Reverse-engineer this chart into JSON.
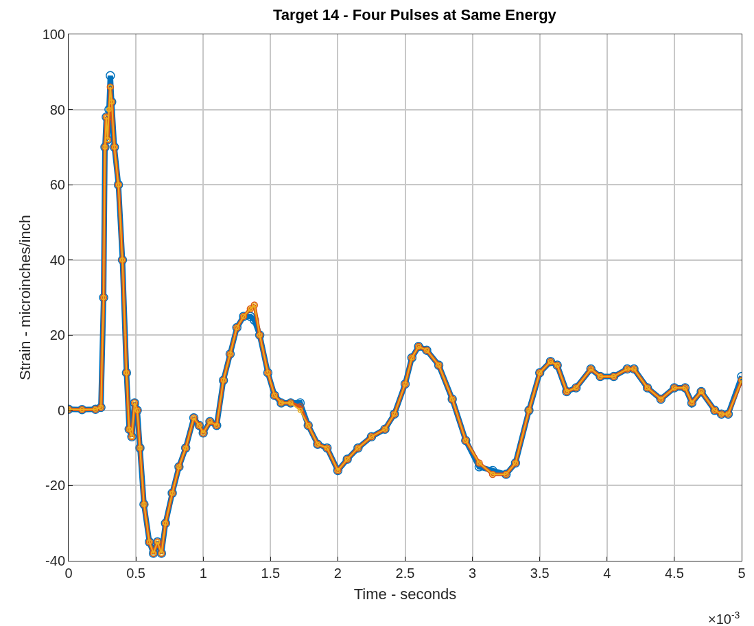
{
  "chart_data": {
    "type": "line",
    "title": "Target 14 - Four Pulses at Same Energy",
    "xlabel": "Time - seconds",
    "ylabel": "Strain - microinches/inch",
    "annotations": [
      "×10$^{-3}$"
    ],
    "x": [
      0,
      0.1,
      0.2,
      0.24,
      0.26,
      0.27,
      0.28,
      0.29,
      0.3,
      0.31,
      0.32,
      0.34,
      0.37,
      0.4,
      0.43,
      0.45,
      0.47,
      0.49,
      0.51,
      0.53,
      0.56,
      0.6,
      0.63,
      0.66,
      0.69,
      0.72,
      0.77,
      0.82,
      0.87,
      0.93,
      0.97,
      1.0,
      1.05,
      1.1,
      1.15,
      1.2,
      1.25,
      1.3,
      1.35,
      1.38,
      1.42,
      1.48,
      1.53,
      1.58,
      1.65,
      1.72,
      1.78,
      1.85,
      1.92,
      2.0,
      2.07,
      2.15,
      2.25,
      2.35,
      2.42,
      2.5,
      2.55,
      2.6,
      2.66,
      2.75,
      2.85,
      2.95,
      3.05,
      3.15,
      3.25,
      3.32,
      3.42,
      3.5,
      3.58,
      3.63,
      3.7,
      3.77,
      3.88,
      3.95,
      4.05,
      4.15,
      4.2,
      4.3,
      4.4,
      4.5,
      4.58,
      4.63,
      4.7,
      4.8,
      4.85,
      4.9,
      5.0
    ],
    "series": [
      {
        "color": "#0072bd",
        "values": [
          0.3,
          0.2,
          0.3,
          0.8,
          30,
          70,
          78,
          72,
          80,
          89,
          82,
          70,
          60,
          40,
          10,
          -5,
          -7,
          2,
          0,
          -10,
          -25,
          -35,
          -38,
          -35,
          -38,
          -30,
          -22,
          -15,
          -10,
          -2,
          -4,
          -6,
          -3,
          -4,
          8,
          15,
          22,
          25,
          25,
          24,
          20,
          10,
          4,
          2,
          2,
          2,
          -4,
          -9,
          -10,
          -16,
          -13,
          -10,
          -7,
          -5,
          -1,
          7,
          14,
          17,
          16,
          12,
          3,
          -8,
          -15,
          -16,
          -17,
          -14,
          0,
          10,
          13,
          12,
          5,
          6,
          11,
          9,
          9,
          11,
          11,
          6,
          3,
          6,
          6,
          2,
          5,
          0,
          -1,
          -1,
          9
        ]
      },
      {
        "color": "#d95319",
        "values": [
          0.3,
          0.2,
          0.3,
          0.8,
          30,
          70,
          78,
          72,
          78,
          86,
          82,
          70,
          60,
          40,
          10,
          -5,
          -7,
          2,
          0,
          -10,
          -25,
          -35,
          -38,
          -35,
          -38,
          -30,
          -22,
          -15,
          -10,
          -2,
          -4,
          -6,
          -3,
          -4,
          8,
          15,
          22,
          25,
          27,
          28,
          20,
          10,
          4,
          2,
          2,
          1,
          -4,
          -9,
          -10,
          -16,
          -13,
          -10,
          -7,
          -5,
          -1,
          7,
          14,
          17,
          16,
          12,
          3,
          -8,
          -14,
          -17,
          -17,
          -14,
          0,
          10,
          13,
          12,
          5,
          6,
          11,
          9,
          9,
          11,
          11,
          6,
          3,
          6,
          6,
          2,
          5,
          0,
          -1,
          -1,
          8
        ]
      },
      {
        "color": "#edb120",
        "values": [
          0.3,
          0.2,
          0.3,
          0.8,
          30,
          70,
          78,
          72,
          80,
          86,
          82,
          70,
          60,
          40,
          10,
          -5,
          -7,
          2,
          0,
          -10,
          -25,
          -35,
          -38,
          -35,
          -38,
          -30,
          -22,
          -15,
          -10,
          -2,
          -4,
          -6,
          -3,
          -4,
          8,
          15,
          22,
          25,
          27,
          28,
          20,
          10,
          4,
          2,
          2,
          0,
          -4,
          -9,
          -10,
          -16,
          -13,
          -10,
          -7,
          -5,
          -1,
          7,
          14,
          17,
          16,
          12,
          3,
          -8,
          -14,
          -17,
          -17,
          -14,
          0,
          10,
          13,
          12,
          5,
          6,
          11,
          9,
          9,
          11,
          11,
          6,
          3,
          6,
          6,
          2,
          5,
          0,
          -1,
          -1,
          8
        ]
      }
    ],
    "xlim": [
      0,
      5
    ],
    "xticks": [
      0,
      0.5,
      1,
      1.5,
      2,
      2.5,
      3,
      3.5,
      4,
      4.5,
      5
    ],
    "ylim": [
      -40,
      100
    ],
    "yticks": [
      -40,
      -20,
      0,
      20,
      40,
      60,
      80,
      100
    ],
    "grid": true,
    "marker": "circle",
    "line_style": "solid"
  }
}
